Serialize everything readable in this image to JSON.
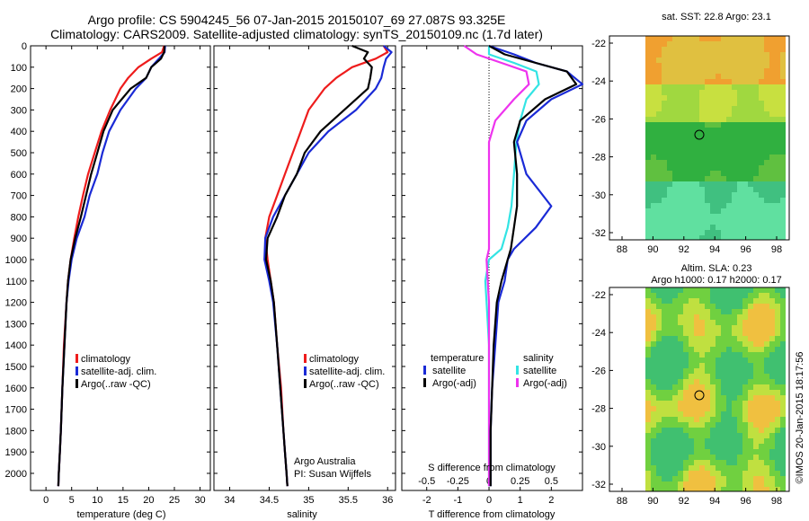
{
  "titles": {
    "line1": "Argo profile: CS 5904245_56 07-Jan-2015 20150107_69 27.087S 93.325E",
    "line2": "Climatology: CARS2009. Satellite-adjusted climatology: synTS_20150109.nc (1.7d later)"
  },
  "sst_title": "sat. SST: 22.8 Argo: 23.1",
  "sla_title1": "Altim. SLA: 0.23",
  "sla_title2": "Argo h1000: 0.17 h2000: 0.17",
  "credit": "©IMOS 20-Jan-2015 18:17:56",
  "depth_ticks": [
    "0",
    "100",
    "200",
    "300",
    "400",
    "500",
    "600",
    "700",
    "800",
    "900",
    "1000",
    "1100",
    "1200",
    "1300",
    "1400",
    "1500",
    "1600",
    "1700",
    "1800",
    "1900",
    "2000"
  ],
  "temp_panel": {
    "xlabel": "temperature (deg C)",
    "xticks": [
      "0",
      "5",
      "10",
      "15",
      "20",
      "25",
      "30"
    ],
    "legend": [
      "climatology",
      "satellite-adj. clim.",
      "Argo(..raw -QC)"
    ]
  },
  "sal_panel": {
    "xlabel": "salinity",
    "xticks": [
      "34",
      "34.5",
      "35",
      "35.5",
      "36"
    ],
    "legend": [
      "climatology",
      "satellite-adj. clim.",
      "Argo(..raw -QC)"
    ],
    "note1": "Argo Australia",
    "note2": "PI: Susan Wijffels"
  },
  "diff_panel": {
    "xlabel": "T difference from climatology",
    "xlabel_top": "S difference from climatology",
    "xticks_t": [
      "-2",
      "-1",
      "0",
      "1",
      "2"
    ],
    "xticks_s": [
      "-0.5",
      "-0.25",
      "0",
      "0.25",
      "0.5"
    ],
    "legend_t_head": "temperature",
    "legend_s_head": "salinity",
    "legend_t": [
      "satellite",
      "Argo(-adj)"
    ],
    "legend_s": [
      "satellite",
      "Argo(-adj)"
    ]
  },
  "map_lat_ticks": [
    "-22",
    "-24",
    "-26",
    "-28",
    "-30",
    "-32"
  ],
  "map_lon_ticks": [
    "88",
    "90",
    "92",
    "94",
    "96",
    "98"
  ],
  "colors": {
    "clim": "#ee1c1c",
    "sat": "#1a2ad6",
    "argo": "#000000",
    "sat_s": "#33e4e4",
    "argo_s": "#ee33ee"
  },
  "chart_data": [
    {
      "type": "line",
      "title": "",
      "xlabel": "temperature (deg C)",
      "ylabel": "",
      "xlim": [
        -3,
        32
      ],
      "ylim": [
        2080,
        0
      ],
      "series": [
        {
          "name": "climatology",
          "x": [
            23.0,
            22.6,
            20.5,
            18.0,
            16.0,
            14.5,
            12.5,
            10.8,
            9.5,
            8.2,
            7.2,
            6.3,
            5.5,
            4.8,
            4.3,
            4.0,
            3.5,
            3.2,
            2.9,
            2.7,
            2.5,
            2.4
          ],
          "y": [
            0,
            30,
            60,
            100,
            150,
            200,
            300,
            400,
            500,
            600,
            700,
            800,
            900,
            1000,
            1100,
            1200,
            1400,
            1600,
            1800,
            1900,
            2000,
            2060
          ]
        },
        {
          "name": "satellite-adj. clim.",
          "x": [
            23.2,
            23.1,
            22.0,
            20.5,
            19.5,
            17.5,
            14.5,
            12.3,
            11.0,
            10.0,
            8.5,
            7.5,
            6.0,
            5.0,
            4.4,
            4.0,
            3.6,
            3.2,
            2.9,
            2.7,
            2.5,
            2.4
          ],
          "y": [
            0,
            30,
            60,
            100,
            150,
            200,
            300,
            400,
            500,
            600,
            700,
            800,
            900,
            1000,
            1100,
            1200,
            1400,
            1600,
            1800,
            1900,
            2000,
            2060
          ]
        },
        {
          "name": "Argo(..raw -QC)",
          "x": [
            23.1,
            23.0,
            22.4,
            20.5,
            19.5,
            16.5,
            13.0,
            11.2,
            10.0,
            8.8,
            7.8,
            6.8,
            5.7,
            4.8,
            4.3,
            4.0,
            3.6,
            3.2,
            2.9,
            2.7,
            2.5,
            2.4
          ],
          "y": [
            0,
            30,
            60,
            100,
            150,
            200,
            300,
            400,
            500,
            600,
            700,
            800,
            900,
            1000,
            1100,
            1200,
            1400,
            1600,
            1800,
            1900,
            2000,
            2060
          ]
        }
      ]
    },
    {
      "type": "line",
      "title": "",
      "xlabel": "salinity",
      "ylabel": "",
      "xlim": [
        33.8,
        36.1
      ],
      "ylim": [
        2080,
        0
      ],
      "series": [
        {
          "name": "climatology",
          "x": [
            35.95,
            36.0,
            35.85,
            35.55,
            35.35,
            35.2,
            35.0,
            34.9,
            34.8,
            34.7,
            34.6,
            34.5,
            34.45,
            34.48,
            34.52,
            34.56,
            34.6,
            34.65,
            34.68,
            34.7,
            34.72,
            34.73
          ],
          "y": [
            0,
            30,
            60,
            100,
            150,
            200,
            300,
            400,
            500,
            600,
            700,
            800,
            900,
            1000,
            1100,
            1200,
            1400,
            1600,
            1800,
            1900,
            2000,
            2060
          ]
        },
        {
          "name": "satellite-adj. clim.",
          "x": [
            35.95,
            36.05,
            35.98,
            35.95,
            35.92,
            35.85,
            35.6,
            35.25,
            35.0,
            34.85,
            34.7,
            34.55,
            34.45,
            34.44,
            34.5,
            34.55,
            34.6,
            34.64,
            34.68,
            34.7,
            34.72,
            34.73
          ],
          "y": [
            0,
            30,
            60,
            100,
            150,
            200,
            300,
            400,
            500,
            600,
            700,
            800,
            900,
            1000,
            1100,
            1200,
            1400,
            1600,
            1800,
            1900,
            2000,
            2060
          ]
        },
        {
          "name": "Argo(..raw -QC)",
          "x": [
            35.55,
            35.75,
            35.7,
            35.8,
            35.78,
            35.75,
            35.45,
            35.15,
            34.95,
            34.85,
            34.7,
            34.6,
            34.48,
            34.46,
            34.52,
            34.56,
            34.6,
            34.64,
            34.68,
            34.7,
            34.72,
            34.73
          ],
          "y": [
            0,
            30,
            60,
            100,
            150,
            200,
            300,
            400,
            500,
            600,
            700,
            800,
            900,
            1000,
            1100,
            1200,
            1400,
            1600,
            1800,
            1900,
            2000,
            2060
          ]
        }
      ]
    },
    {
      "type": "line",
      "title": "",
      "xlabel": "T difference from climatology",
      "ylabel": "",
      "xlim": [
        -2.8,
        3.0
      ],
      "ylim": [
        2080,
        0
      ],
      "series": [
        {
          "name": "satellite",
          "x": [
            0,
            0.8,
            1.5,
            2.5,
            3.0,
            2.0,
            1.2,
            0.9,
            1.2,
            2.0,
            1.5,
            0.8,
            0.6,
            0.5,
            0.3,
            0.2,
            0.1,
            0.05,
            0.05,
            0.05
          ],
          "y": [
            0,
            40,
            80,
            120,
            180,
            250,
            350,
            450,
            600,
            750,
            850,
            950,
            1000,
            1100,
            1200,
            1400,
            1600,
            1800,
            2000,
            2060
          ]
        },
        {
          "name": "Argo(-adj)",
          "x": [
            0,
            0.5,
            1.5,
            2.5,
            2.8,
            1.8,
            1.0,
            0.8,
            0.9,
            0.9,
            0.8,
            0.7,
            0.6,
            0.4,
            0.25,
            0.15,
            0.1,
            0.05,
            0.05,
            0.05
          ],
          "y": [
            0,
            40,
            80,
            120,
            180,
            250,
            350,
            450,
            600,
            750,
            850,
            950,
            1000,
            1100,
            1200,
            1400,
            1600,
            1800,
            2000,
            2060
          ]
        }
      ]
    },
    {
      "type": "line",
      "title": "",
      "xlabel": "S difference from climatology",
      "ylabel": "",
      "xlim": [
        -0.7,
        0.75
      ],
      "ylim": [
        2080,
        0
      ],
      "series": [
        {
          "name": "satellite",
          "x": [
            0,
            0.0,
            0.2,
            0.38,
            0.4,
            0.3,
            0.25,
            0.22,
            0.2,
            0.18,
            0.15,
            0.1,
            0.0,
            -0.03,
            -0.02,
            0.0,
            0.0,
            0.0,
            0.0,
            0.0
          ],
          "y": [
            0,
            40,
            80,
            120,
            180,
            250,
            350,
            450,
            600,
            750,
            850,
            950,
            1000,
            1100,
            1200,
            1400,
            1600,
            1800,
            2000,
            2060
          ]
        },
        {
          "name": "Argo(-adj)",
          "x": [
            -0.2,
            -0.1,
            0.1,
            0.3,
            0.32,
            0.2,
            0.05,
            0.0,
            0.0,
            0.0,
            0.0,
            0.0,
            -0.02,
            -0.01,
            0.0,
            0.0,
            0.0,
            0.0,
            0.0,
            0.0
          ],
          "y": [
            0,
            40,
            80,
            120,
            180,
            250,
            350,
            450,
            600,
            750,
            850,
            950,
            1000,
            1100,
            1200,
            1400,
            1600,
            1800,
            2000,
            2060
          ]
        }
      ]
    }
  ]
}
